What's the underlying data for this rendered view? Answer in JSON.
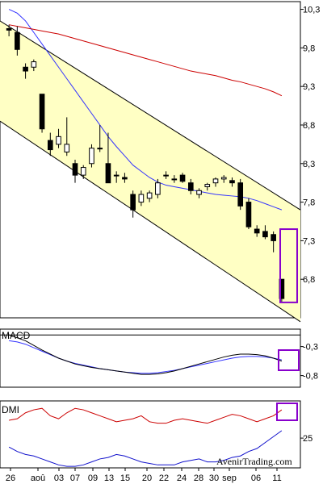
{
  "chart_data": [
    {
      "type": "candlestick",
      "panel": "price",
      "y_axis_labels": [
        "10,3",
        "9,8",
        "9,3",
        "8,8",
        "8,3",
        "7,8",
        "7,3",
        "6,8"
      ],
      "y_ticks": [
        10.3,
        9.8,
        9.3,
        8.8,
        8.3,
        7.8,
        7.3,
        6.8
      ],
      "ylim": [
        6.3,
        10.4
      ],
      "x_labels": [
        "26",
        "aoû",
        "03",
        "07",
        "09",
        "13",
        "15",
        "20",
        "22",
        "24",
        "28",
        "30",
        "sep",
        "06",
        "11"
      ],
      "candles": [
        {
          "o": 10.05,
          "h": 10.1,
          "l": 9.95,
          "c": 10.03
        },
        {
          "o": 10.0,
          "h": 10.08,
          "l": 9.7,
          "c": 9.78
        },
        {
          "o": 9.55,
          "h": 9.6,
          "l": 9.4,
          "c": 9.5
        },
        {
          "o": 9.55,
          "h": 9.65,
          "l": 9.5,
          "c": 9.62
        },
        {
          "o": 9.2,
          "h": 9.2,
          "l": 8.7,
          "c": 8.75
        },
        {
          "o": 8.6,
          "h": 8.7,
          "l": 8.4,
          "c": 8.48
        },
        {
          "o": 8.55,
          "h": 8.75,
          "l": 8.5,
          "c": 8.65
        },
        {
          "o": 8.45,
          "h": 8.9,
          "l": 8.4,
          "c": 8.55
        },
        {
          "o": 8.3,
          "h": 8.35,
          "l": 8.05,
          "c": 8.15
        },
        {
          "o": 8.15,
          "h": 8.28,
          "l": 8.1,
          "c": 8.25
        },
        {
          "o": 8.3,
          "h": 8.55,
          "l": 8.25,
          "c": 8.5
        },
        {
          "o": 8.5,
          "h": 8.8,
          "l": 8.45,
          "c": 8.5
        },
        {
          "o": 8.3,
          "h": 8.7,
          "l": 8.05,
          "c": 8.05
        },
        {
          "o": 8.15,
          "h": 8.2,
          "l": 8.05,
          "c": 8.15
        },
        {
          "o": 8.12,
          "h": 8.18,
          "l": 8.05,
          "c": 8.1
        },
        {
          "o": 7.9,
          "h": 7.95,
          "l": 7.6,
          "c": 7.7
        },
        {
          "o": 7.8,
          "h": 7.95,
          "l": 7.75,
          "c": 7.9
        },
        {
          "o": 7.85,
          "h": 7.95,
          "l": 7.8,
          "c": 7.92
        },
        {
          "o": 7.9,
          "h": 8.1,
          "l": 7.85,
          "c": 8.05
        },
        {
          "o": 8.15,
          "h": 8.2,
          "l": 8.1,
          "c": 8.15
        },
        {
          "o": 8.1,
          "h": 8.15,
          "l": 8.05,
          "c": 8.1
        },
        {
          "o": 8.15,
          "h": 8.18,
          "l": 8.05,
          "c": 8.07
        },
        {
          "o": 8.05,
          "h": 8.1,
          "l": 7.9,
          "c": 7.95
        },
        {
          "o": 7.9,
          "h": 7.98,
          "l": 7.85,
          "c": 7.95
        },
        {
          "o": 8.0,
          "h": 8.05,
          "l": 7.95,
          "c": 8.03
        },
        {
          "o": 8.05,
          "h": 8.12,
          "l": 8.0,
          "c": 8.1
        },
        {
          "o": 8.1,
          "h": 8.15,
          "l": 8.05,
          "c": 8.12
        },
        {
          "o": 8.08,
          "h": 8.12,
          "l": 8.0,
          "c": 8.05
        },
        {
          "o": 8.05,
          "h": 8.1,
          "l": 7.7,
          "c": 7.75
        },
        {
          "o": 7.8,
          "h": 7.85,
          "l": 7.45,
          "c": 7.48
        },
        {
          "o": 7.45,
          "h": 7.5,
          "l": 7.35,
          "c": 7.4
        },
        {
          "o": 7.42,
          "h": 7.5,
          "l": 7.32,
          "c": 7.35
        },
        {
          "o": 7.38,
          "h": 7.42,
          "l": 7.15,
          "c": 7.3
        },
        {
          "o": 6.8,
          "h": 6.8,
          "l": 6.5,
          "c": 6.55
        }
      ],
      "sma_short": [
        10.3,
        10.25,
        10.15,
        10.0,
        9.85,
        9.7,
        9.55,
        9.4,
        9.25,
        9.1,
        8.95,
        8.8,
        8.65,
        8.52,
        8.4,
        8.28,
        8.2,
        8.12,
        8.06,
        8.02,
        8.0,
        7.98,
        7.96,
        7.94,
        7.92,
        7.9,
        7.89,
        7.88,
        7.87,
        7.85,
        7.82,
        7.78,
        7.74,
        7.7
      ],
      "sma_long": [
        10.1,
        10.08,
        10.06,
        10.04,
        10.02,
        10.0,
        9.98,
        9.95,
        9.92,
        9.89,
        9.86,
        9.83,
        9.8,
        9.77,
        9.74,
        9.71,
        9.68,
        9.65,
        9.62,
        9.59,
        9.56,
        9.53,
        9.5,
        9.48,
        9.46,
        9.44,
        9.41,
        9.38,
        9.36,
        9.33,
        9.3,
        9.27,
        9.23,
        9.18
      ],
      "channel_upper": [
        10.15,
        7.7
      ],
      "channel_lower": [
        8.85,
        6.25
      ],
      "highlight_range": [
        6.5,
        7.45
      ]
    },
    {
      "type": "line",
      "panel": "macd",
      "title": "MACD",
      "y_axis_labels": [
        "-0,3",
        "-0,8"
      ],
      "y_ticks": [
        -0.3,
        -0.8
      ],
      "ylim": [
        -1.0,
        0.0
      ],
      "signal_level": -0.1,
      "macd": [
        -0.1,
        -0.15,
        -0.2,
        -0.28,
        -0.36,
        -0.43,
        -0.5,
        -0.55,
        -0.6,
        -0.63,
        -0.66,
        -0.68,
        -0.7,
        -0.72,
        -0.74,
        -0.76,
        -0.78,
        -0.78,
        -0.77,
        -0.75,
        -0.72,
        -0.68,
        -0.64,
        -0.6,
        -0.56,
        -0.52,
        -0.48,
        -0.45,
        -0.43,
        -0.43,
        -0.44,
        -0.46,
        -0.5,
        -0.55
      ],
      "signal": [
        -0.2,
        -0.22,
        -0.26,
        -0.32,
        -0.38,
        -0.44,
        -0.5,
        -0.55,
        -0.59,
        -0.62,
        -0.65,
        -0.68,
        -0.7,
        -0.72,
        -0.74,
        -0.75,
        -0.76,
        -0.76,
        -0.75,
        -0.73,
        -0.71,
        -0.68,
        -0.65,
        -0.62,
        -0.59,
        -0.56,
        -0.53,
        -0.5,
        -0.48,
        -0.47,
        -0.47,
        -0.48,
        -0.5,
        -0.53
      ]
    },
    {
      "type": "line",
      "panel": "dmi",
      "title": "DMI",
      "y_axis_labels": [
        "25"
      ],
      "y_ticks": [
        25
      ],
      "ylim": [
        5,
        50
      ],
      "plus_di": [
        37,
        38,
        42,
        44,
        45,
        40,
        38,
        42,
        45,
        44,
        42,
        40,
        38,
        36,
        37,
        38,
        40,
        36,
        35,
        35,
        37,
        38,
        37,
        36,
        35,
        37,
        39,
        41,
        40,
        38,
        36,
        38,
        40,
        44
      ],
      "minus_di": [
        19,
        16,
        14,
        13,
        11,
        9,
        7,
        6,
        6,
        7,
        9,
        11,
        12,
        14,
        13,
        11,
        9,
        8,
        7,
        7,
        7,
        9,
        10,
        11,
        9,
        9,
        10,
        12,
        13,
        16,
        18,
        22,
        26,
        30
      ]
    }
  ],
  "watermark": "AvenirTrading.com",
  "colors": {
    "channel_fill": "#ffffc4",
    "sma_short": "#3333ff",
    "sma_long": "#cc0000",
    "highlight": "#8800cc",
    "macd_line": "#000000",
    "signal_line": "#3333ff",
    "plus_di": "#cc0000",
    "minus_di": "#1111cc"
  }
}
